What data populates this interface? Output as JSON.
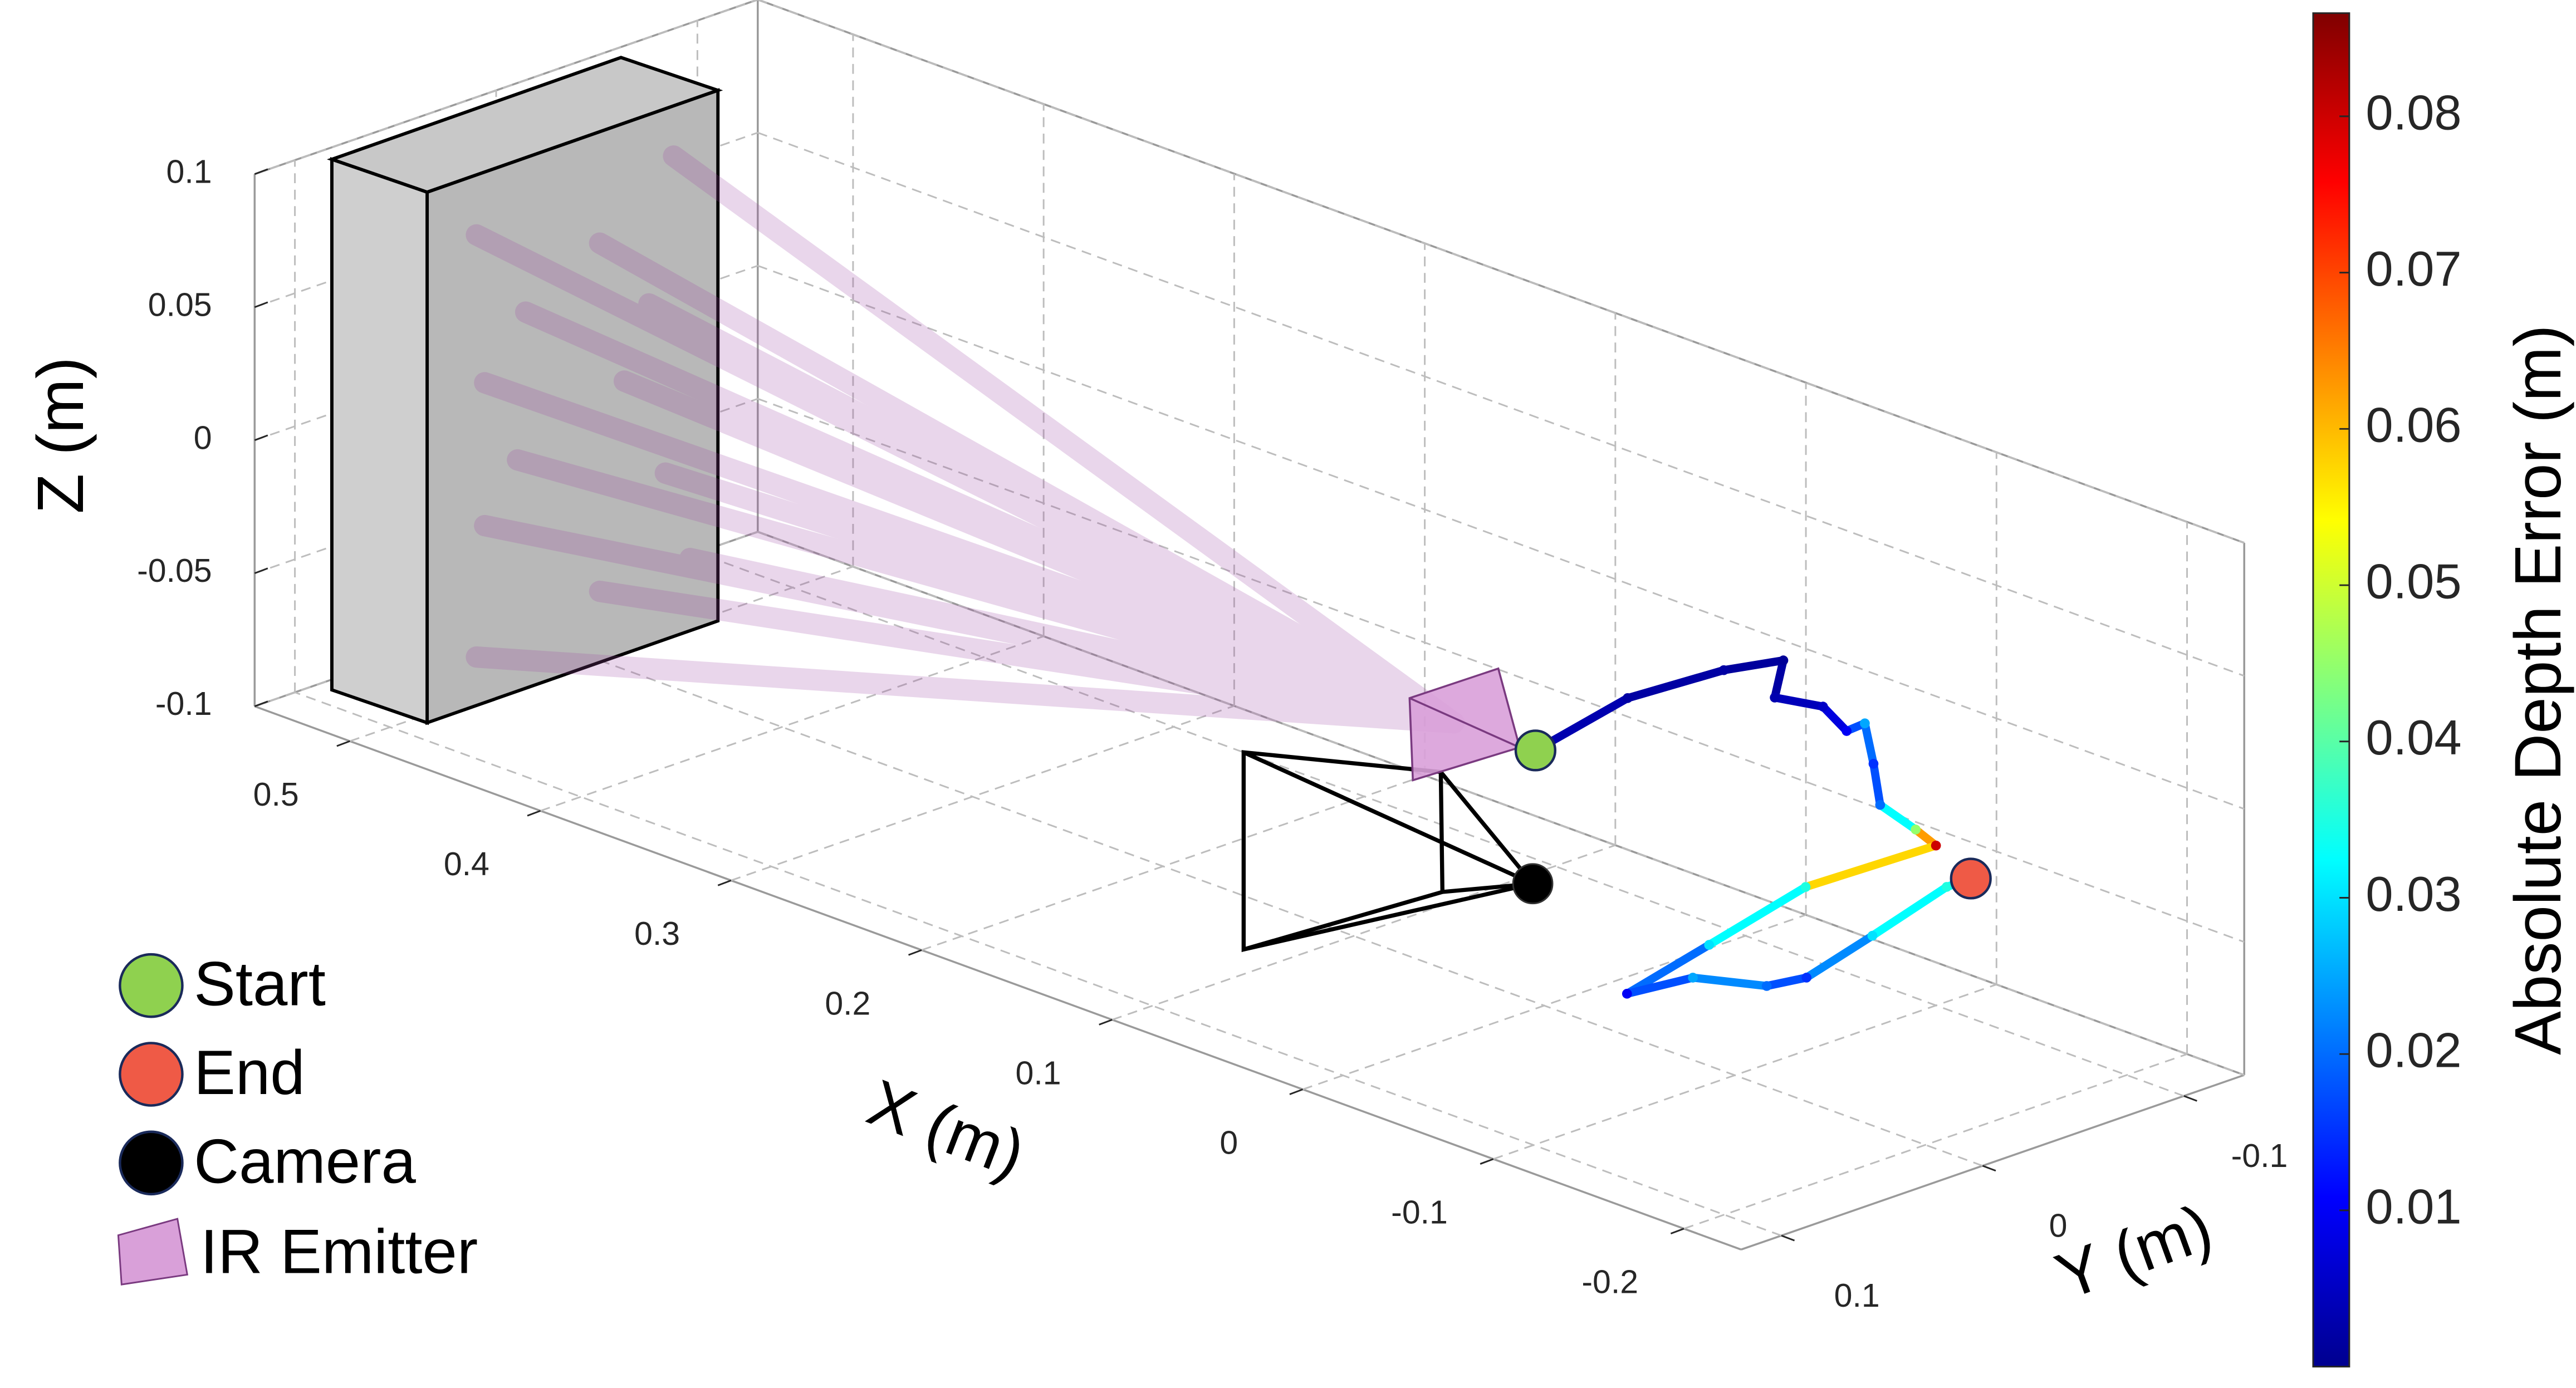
{
  "chart_data": {
    "type": "line3d",
    "xlabel": "X (m)",
    "ylabel": "Y (m)",
    "zlabel": "Z (m)",
    "xlim": [
      -0.23,
      0.55
    ],
    "ylim": [
      -0.13,
      0.12
    ],
    "zlim": [
      -0.1,
      0.1
    ],
    "xticks": [
      -0.2,
      -0.1,
      0,
      0.1,
      0.2,
      0.3,
      0.4,
      0.5
    ],
    "yticks": [
      -0.1,
      0,
      0.1
    ],
    "zticks": [
      -0.1,
      -0.05,
      0,
      0.05,
      0.1
    ],
    "grid": true,
    "colormap": "jet",
    "colorbar": {
      "label": "Absolute Depth Error (m)",
      "clim": [
        0,
        0.0866
      ],
      "ticks": [
        0.01,
        0.02,
        0.03,
        0.04,
        0.05,
        0.06,
        0.07,
        0.08
      ]
    },
    "legend": [
      "Start",
      "End",
      "Camera",
      "IR Emitter"
    ],
    "series": [
      {
        "x": [
          -0.045,
          -0.03,
          -0.034,
          -0.042,
          -0.028,
          -0.047,
          -0.071,
          -0.07,
          -0.102,
          -0.134,
          -0.122,
          -0.139,
          -0.097,
          -0.115,
          -0.13,
          -0.135,
          -0.16,
          -0.164,
          -0.15,
          -0.133,
          -0.133
        ],
        "y": [
          0.047,
          -0.013,
          -0.057,
          -0.079,
          -0.088,
          -0.094,
          -0.083,
          -0.093,
          -0.067,
          -0.04,
          -0.069,
          -0.063,
          -0.038,
          0.027,
          0.082,
          0.054,
          0.041,
          0.025,
          -0.021,
          -0.074,
          -0.086
        ],
        "z": [
          0.02,
          0.02,
          0.02,
          0.02,
          0,
          0,
          0,
          0,
          0,
          0,
          -0.02,
          -0.02,
          -0.04,
          -0.04,
          -0.04,
          -0.04,
          -0.04,
          -0.04,
          -0.04,
          -0.04,
          -0.04
        ],
        "error": [
          0.005,
          0.003,
          0.003,
          0.002,
          0.004,
          0.006,
          0.01,
          0.025,
          0.015,
          0.02,
          0.045,
          0.08,
          0.035,
          0.03,
          0.01,
          0.025,
          0.02,
          0.015,
          0.03,
          0.035,
          0.03
        ]
      }
    ]
  }
}
